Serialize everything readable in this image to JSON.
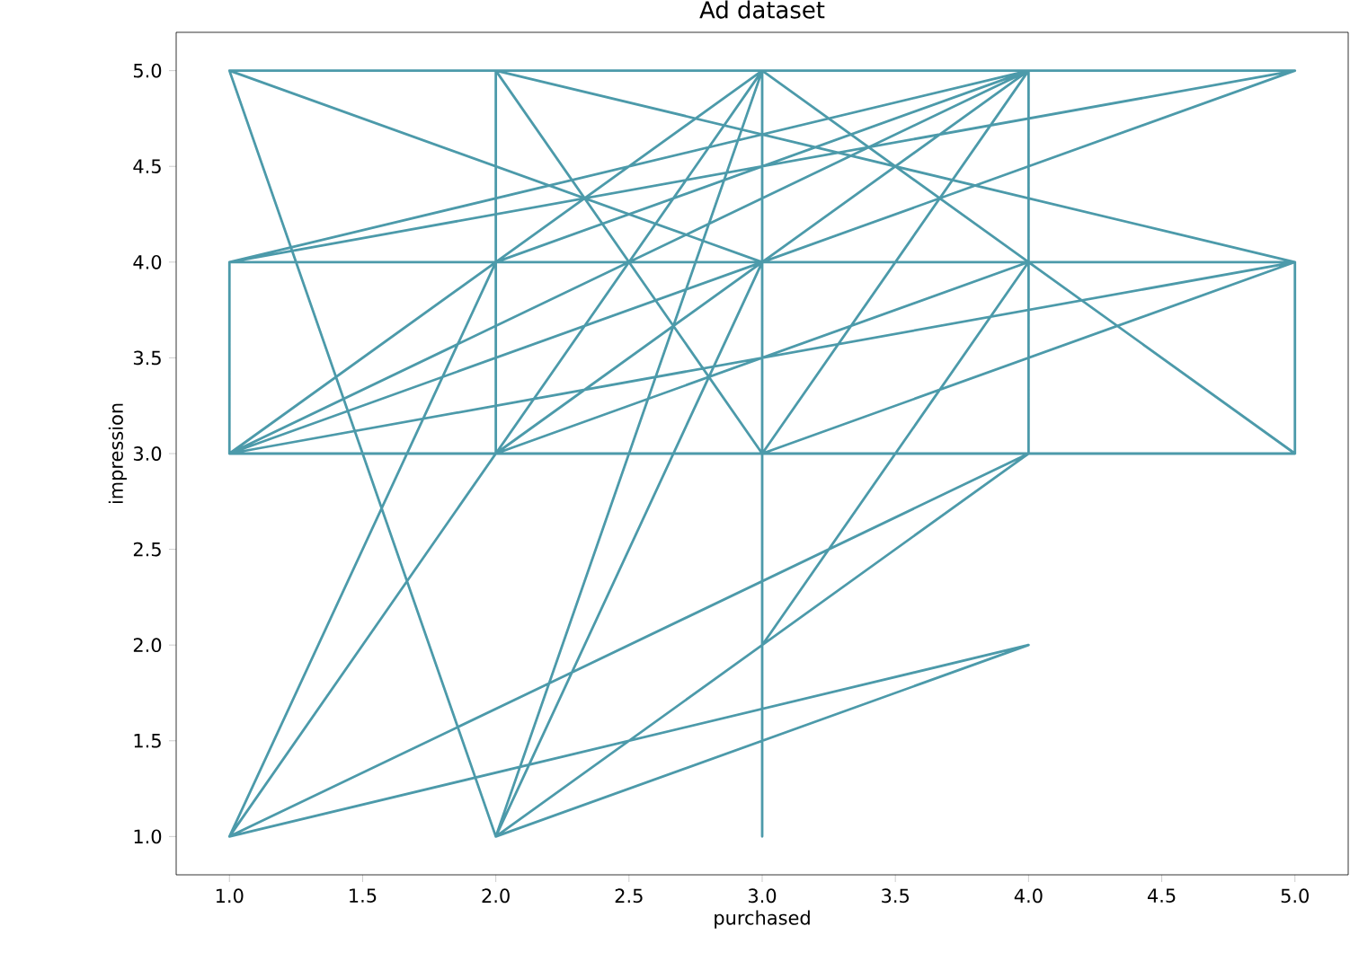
{
  "chart_data": {
    "type": "line",
    "title": "Ad dataset",
    "xlabel": "purchased",
    "ylabel": "impression",
    "x": [
      1,
      3,
      1,
      1,
      5,
      4,
      2,
      2,
      3,
      3,
      5,
      1,
      2,
      5,
      5,
      4,
      1,
      4,
      2,
      3,
      3,
      3,
      4,
      2,
      5,
      1,
      4,
      4,
      2,
      3,
      1,
      2,
      4,
      3,
      2,
      5,
      1,
      3,
      5,
      4,
      1,
      4,
      2,
      3,
      5,
      1,
      2
    ],
    "series": [
      {
        "color": "#4c9aaa",
        "values": [
          5,
          4,
          3,
          4,
          5,
          5,
          5,
          3,
          5,
          3,
          4,
          4,
          4,
          4,
          3,
          3,
          1,
          2,
          1,
          4,
          1,
          2,
          4,
          3,
          3,
          3,
          5,
          3,
          1,
          5,
          1,
          4,
          5,
          3,
          5,
          4,
          3,
          5,
          3,
          4,
          4,
          5,
          3,
          4,
          5,
          5,
          1
        ]
      }
    ],
    "xlim": [
      0.8,
      5.2
    ],
    "ylim": [
      0.8,
      5.2
    ],
    "xticks": [
      {
        "value": 1,
        "label": "1.0"
      },
      {
        "value": 1.5,
        "label": "1.5"
      },
      {
        "value": 2,
        "label": "2.0"
      },
      {
        "value": 2.5,
        "label": "2.5"
      },
      {
        "value": 3,
        "label": "3.0"
      },
      {
        "value": 3.5,
        "label": "3.5"
      },
      {
        "value": 4,
        "label": "4.0"
      },
      {
        "value": 4.5,
        "label": "4.5"
      },
      {
        "value": 5,
        "label": "5.0"
      }
    ],
    "yticks": [
      {
        "value": 1,
        "label": "1.0"
      },
      {
        "value": 1.5,
        "label": "1.5"
      },
      {
        "value": 2,
        "label": "2.0"
      },
      {
        "value": 2.5,
        "label": "2.5"
      },
      {
        "value": 3,
        "label": "3.0"
      },
      {
        "value": 3.5,
        "label": "3.5"
      },
      {
        "value": 4,
        "label": "4.0"
      },
      {
        "value": 4.5,
        "label": "4.5"
      },
      {
        "value": 5,
        "label": "5.0"
      }
    ],
    "grid": false,
    "marker": "none",
    "line_style": "solid"
  }
}
